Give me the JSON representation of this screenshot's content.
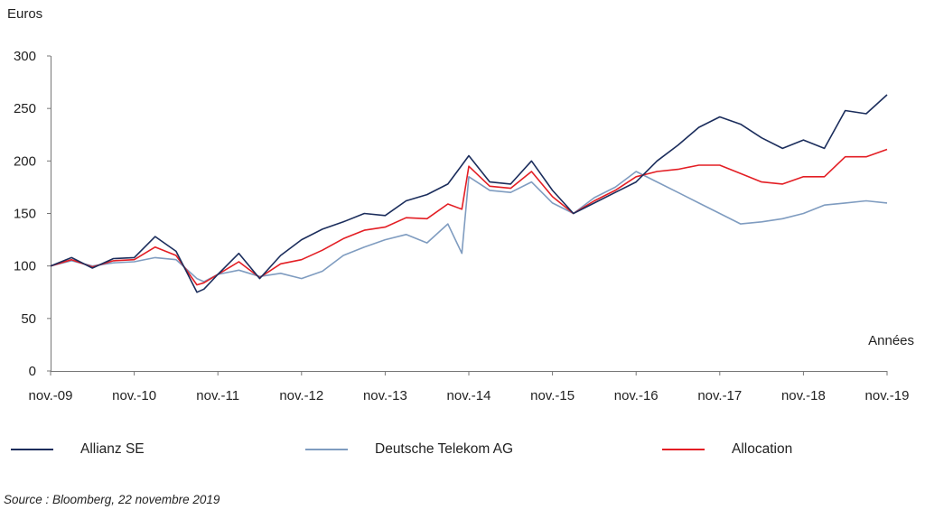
{
  "chart_data": {
    "type": "line",
    "ylabel": "Euros",
    "xlabel": "Années",
    "ylim": [
      0,
      300
    ],
    "yticks": [
      0,
      50,
      100,
      150,
      200,
      250,
      300
    ],
    "x_ticks": [
      "nov.-09",
      "nov.-10",
      "nov.-11",
      "nov.-12",
      "nov.-13",
      "nov.-14",
      "nov.-15",
      "nov.-16",
      "nov.-17",
      "nov.-18",
      "nov.-19"
    ],
    "grid": false,
    "legend_position": "bottom",
    "series": [
      {
        "name": "Allianz SE",
        "color": "#1b2d5c",
        "x": [
          "nov.-09",
          "feb.-10",
          "may-10",
          "aug.-10",
          "nov.-10",
          "feb.-11",
          "may-11",
          "aug.-11",
          "sep.-11",
          "nov.-11",
          "feb.-12",
          "may-12",
          "aug.-12",
          "nov.-12",
          "feb.-13",
          "may-13",
          "aug.-13",
          "nov.-13",
          "feb.-14",
          "may-14",
          "aug.-14",
          "oct.-14",
          "nov.-14",
          "feb.-15",
          "may-15",
          "aug.-15",
          "nov.-15",
          "feb.-16",
          "may-16",
          "aug.-16",
          "nov.-16",
          "feb.-17",
          "may-17",
          "aug.-17",
          "nov.-17",
          "feb.-18",
          "may-18",
          "aug.-18",
          "nov.-18",
          "feb.-19",
          "may-19",
          "aug.-19",
          "nov.-19"
        ],
        "values": [
          100,
          108,
          98,
          107,
          108,
          128,
          114,
          75,
          78,
          92,
          112,
          88,
          110,
          125,
          135,
          142,
          150,
          148,
          162,
          168,
          178,
          196,
          205,
          180,
          178,
          200,
          172,
          150,
          160,
          170,
          180,
          200,
          215,
          232,
          242,
          235,
          222,
          212,
          220,
          212,
          248,
          245,
          263
        ]
      },
      {
        "name": "Deutsche Telekom AG",
        "color": "#7f9cc0",
        "x": [
          "nov.-09",
          "feb.-10",
          "may-10",
          "aug.-10",
          "nov.-10",
          "feb.-11",
          "may-11",
          "aug.-11",
          "sep.-11",
          "nov.-11",
          "feb.-12",
          "may-12",
          "aug.-12",
          "nov.-12",
          "feb.-13",
          "may-13",
          "aug.-13",
          "nov.-13",
          "feb.-14",
          "may-14",
          "aug.-14",
          "oct.-14",
          "nov.-14",
          "feb.-15",
          "may-15",
          "aug.-15",
          "nov.-15",
          "feb.-16",
          "may-16",
          "aug.-16",
          "nov.-16",
          "feb.-17",
          "may-17",
          "aug.-17",
          "nov.-17",
          "feb.-18",
          "may-18",
          "aug.-18",
          "nov.-18",
          "feb.-19",
          "may-19",
          "aug.-19",
          "nov.-19"
        ],
        "values": [
          100,
          105,
          100,
          103,
          104,
          108,
          106,
          88,
          85,
          92,
          96,
          90,
          93,
          88,
          95,
          110,
          118,
          125,
          130,
          122,
          140,
          112,
          185,
          172,
          170,
          180,
          160,
          150,
          165,
          175,
          190,
          180,
          170,
          160,
          150,
          140,
          142,
          145,
          150,
          158,
          160,
          162,
          160
        ]
      },
      {
        "name": "Allocation",
        "color": "#e31e24",
        "x": [
          "nov.-09",
          "feb.-10",
          "may-10",
          "aug.-10",
          "nov.-10",
          "feb.-11",
          "may-11",
          "aug.-11",
          "sep.-11",
          "nov.-11",
          "feb.-12",
          "may-12",
          "aug.-12",
          "nov.-12",
          "feb.-13",
          "may-13",
          "aug.-13",
          "nov.-13",
          "feb.-14",
          "may-14",
          "aug.-14",
          "oct.-14",
          "nov.-14",
          "feb.-15",
          "may-15",
          "aug.-15",
          "nov.-15",
          "feb.-16",
          "may-16",
          "aug.-16",
          "nov.-16",
          "feb.-17",
          "may-17",
          "aug.-17",
          "nov.-17",
          "feb.-18",
          "may-18",
          "aug.-18",
          "nov.-18",
          "feb.-19",
          "may-19",
          "aug.-19",
          "nov.-19"
        ],
        "values": [
          100,
          106,
          99,
          105,
          106,
          118,
          110,
          82,
          84,
          92,
          104,
          89,
          102,
          106,
          115,
          126,
          134,
          137,
          146,
          145,
          159,
          154,
          195,
          176,
          174,
          190,
          166,
          150,
          162,
          172,
          185,
          190,
          192,
          196,
          196,
          188,
          180,
          178,
          185,
          185,
          204,
          204,
          211
        ]
      }
    ]
  },
  "legend": [
    {
      "label": "Allianz SE",
      "color": "#1b2d5c"
    },
    {
      "label": "Deutsche Telekom AG",
      "color": "#7f9cc0"
    },
    {
      "label": "Allocation",
      "color": "#e31e24"
    }
  ],
  "source": "Source : Bloomberg, 22 novembre 2019"
}
